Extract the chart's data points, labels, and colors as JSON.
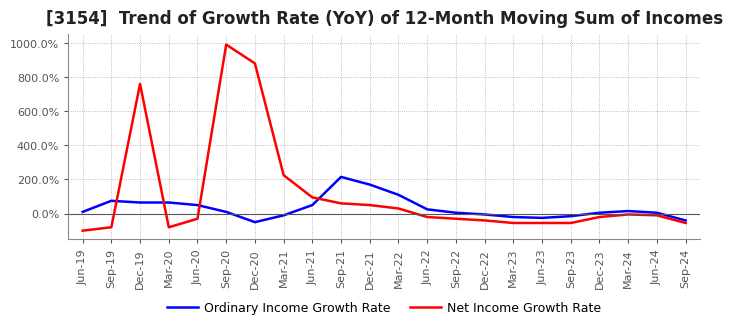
{
  "title": "[3154]  Trend of Growth Rate (YoY) of 12-Month Moving Sum of Incomes",
  "title_fontsize": 12,
  "ylim": [
    -150,
    1050
  ],
  "yticks": [
    0,
    200,
    400,
    600,
    800,
    1000
  ],
  "background_color": "#ffffff",
  "grid_color": "#aaaaaa",
  "legend_labels": [
    "Ordinary Income Growth Rate",
    "Net Income Growth Rate"
  ],
  "legend_colors": [
    "blue",
    "red"
  ],
  "x_labels": [
    "Jun-19",
    "Sep-19",
    "Dec-19",
    "Mar-20",
    "Jun-20",
    "Sep-20",
    "Dec-20",
    "Mar-21",
    "Jun-21",
    "Sep-21",
    "Dec-21",
    "Mar-22",
    "Jun-22",
    "Sep-22",
    "Dec-22",
    "Mar-23",
    "Jun-23",
    "Sep-23",
    "Dec-23",
    "Mar-24",
    "Jun-24",
    "Sep-24"
  ],
  "ordinary_income_growth": [
    10,
    75,
    65,
    65,
    50,
    10,
    -50,
    -10,
    50,
    215,
    170,
    110,
    25,
    5,
    -5,
    -20,
    -25,
    -15,
    5,
    15,
    5,
    -40
  ],
  "net_income_growth": [
    -100,
    -80,
    760,
    -80,
    -30,
    990,
    880,
    225,
    95,
    60,
    50,
    30,
    -20,
    -30,
    -40,
    -55,
    -55,
    -55,
    -20,
    -5,
    -10,
    -55
  ]
}
